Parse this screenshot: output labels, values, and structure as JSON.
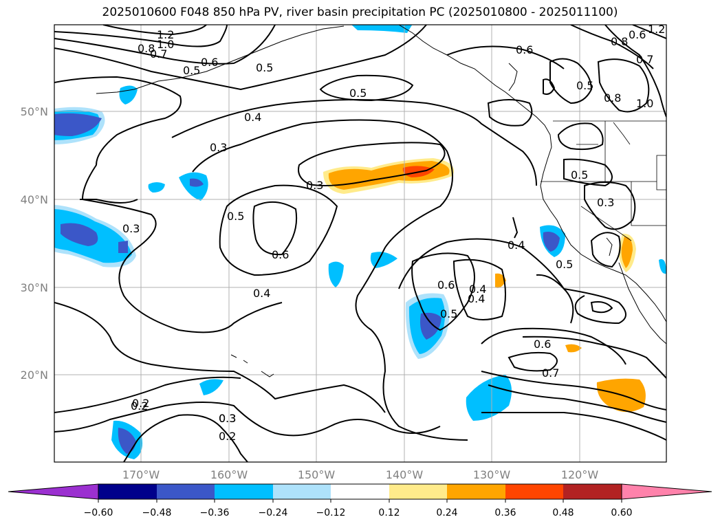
{
  "title": "2025010600 F048 850 hPa PV, river basin precipitation PC (2025010800 - 2025011100)",
  "map": {
    "lat_ticks": [
      "50°N",
      "40°N",
      "30°N",
      "20°N"
    ],
    "lon_ticks": [
      "170°W",
      "160°W",
      "150°W",
      "140°W",
      "130°W",
      "120°W"
    ],
    "contour_labels": [
      "1.2",
      "1.0",
      "0.8",
      "0.7",
      "0.6",
      "0.5",
      "0.4",
      "0.3",
      "0.2",
      "0.6",
      "0.5",
      "0.5",
      "0.4",
      "0.3",
      "0.5",
      "0.6",
      "0.4",
      "0.3",
      "0.3",
      "0.2",
      "0.2",
      "0.3",
      "0.6",
      "0.5",
      "0.4",
      "0.6",
      "0.7",
      "0.4",
      "0.5",
      "0.3",
      "0.5",
      "0.8",
      "1.0",
      "0.7",
      "0.8",
      "1.2",
      "0.6",
      "0.5"
    ]
  },
  "colorbar": {
    "colors": [
      "#9b30d0",
      "#00008b",
      "#3b57c8",
      "#00bfff",
      "#aee2fb",
      "#ffffff",
      "#ffeb8b",
      "#ffa500",
      "#ff4500",
      "#b22222",
      "#ff82ab"
    ],
    "tick_labels": [
      "−0.60",
      "−0.48",
      "−0.36",
      "−0.24",
      "−0.12",
      "0.12",
      "0.24",
      "0.36",
      "0.48",
      "0.60"
    ]
  }
}
